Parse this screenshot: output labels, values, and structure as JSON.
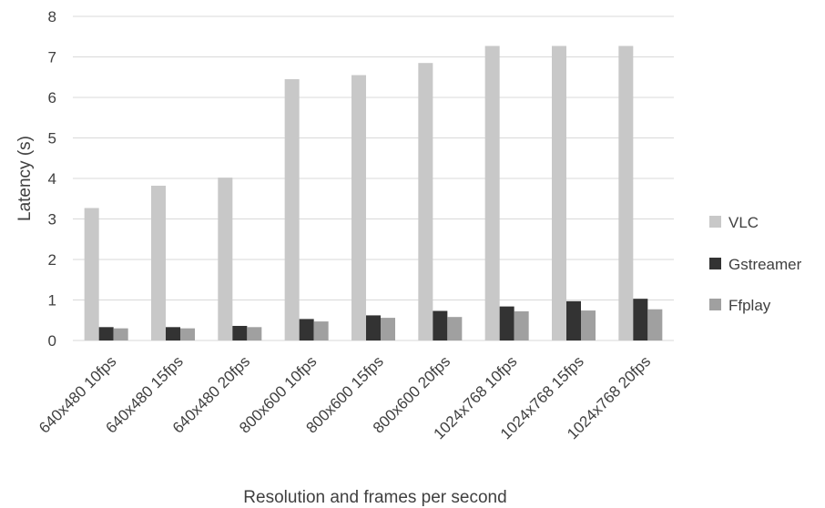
{
  "chart_data": {
    "type": "bar",
    "title": "",
    "xlabel": "Resolution and frames per second",
    "ylabel": "Latency (s)",
    "ylim": [
      0,
      8
    ],
    "yticks": [
      0,
      1,
      2,
      3,
      4,
      5,
      6,
      7,
      8
    ],
    "grid": true,
    "legend_position": "right",
    "categories": [
      "640x480 10fps",
      "640x480 15fps",
      "640x480 20fps",
      "800x600 10fps",
      "800x600 15fps",
      "800x600 20fps",
      "1024x768 10fps",
      "1024x768 15fps",
      "1024x768 20fps"
    ],
    "series": [
      {
        "name": "VLC",
        "color": "#c8c8c8",
        "values": [
          3.27,
          3.82,
          4.02,
          6.45,
          6.55,
          6.85,
          7.27,
          7.27,
          7.27
        ]
      },
      {
        "name": "Gstreamer",
        "color": "#333333",
        "values": [
          0.33,
          0.33,
          0.36,
          0.53,
          0.62,
          0.73,
          0.84,
          0.97,
          1.03
        ]
      },
      {
        "name": "Ffplay",
        "color": "#a0a0a0",
        "values": [
          0.3,
          0.3,
          0.33,
          0.47,
          0.56,
          0.58,
          0.72,
          0.74,
          0.77
        ]
      }
    ]
  }
}
